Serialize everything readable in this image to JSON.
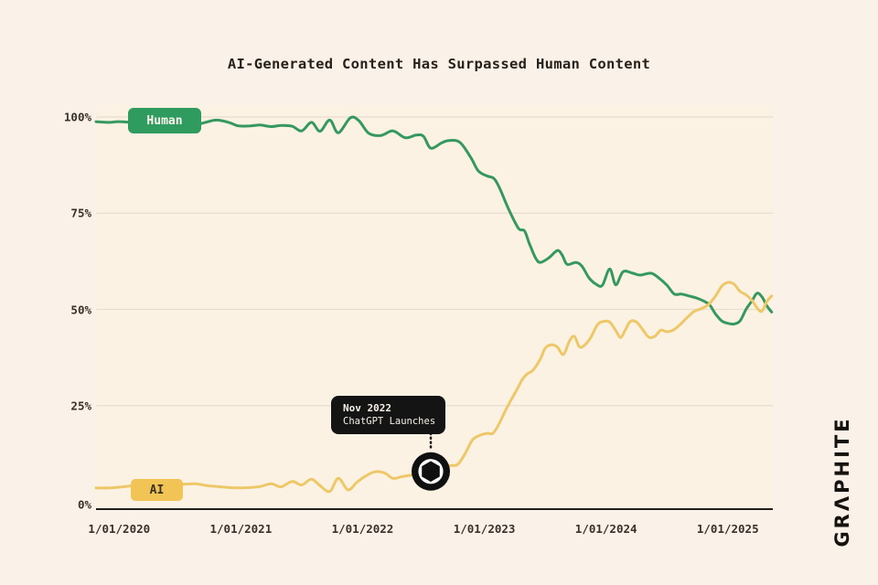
{
  "title": "AI-Generated Content Has Surpassed Human Content",
  "brand": {
    "name": "GRAPHITE",
    "display": "GRΛPHITE"
  },
  "series_labels": {
    "human": "Human",
    "ai": "AI"
  },
  "annotation": {
    "title": "Nov 2022",
    "subtitle": "ChatGPT Launches",
    "icon": "openai-logo"
  },
  "colors": {
    "background": "#faf1e8",
    "human_line": "#35995f",
    "human_badge": "#2f9b5e",
    "ai_line": "#eec868",
    "ai_badge": "#f2c355",
    "grid": "#e7ddd1",
    "axis": "#211f1c",
    "tooltip_bg": "#141414",
    "marker_bg": "#101010"
  },
  "chart_data": {
    "type": "line",
    "title": "AI-Generated Content Has Surpassed Human Content",
    "xlabel": "",
    "ylabel": "",
    "grid": "horizontal",
    "legend_position": "on-line-badges",
    "ylim": [
      0,
      100
    ],
    "xlim": [
      2019.81,
      2025.37
    ],
    "y_axis": {
      "ticks": [
        {
          "label": "0%",
          "value": 0
        },
        {
          "label": "25%",
          "value": 25
        },
        {
          "label": "50%",
          "value": 50
        },
        {
          "label": "75%",
          "value": 75
        },
        {
          "label": "100%",
          "value": 100
        }
      ]
    },
    "x_axis": {
      "ticks": [
        {
          "label": "1/01/2020",
          "year": 2020
        },
        {
          "label": "1/01/2021",
          "year": 2021
        },
        {
          "label": "1/01/2022",
          "year": 2022
        },
        {
          "label": "1/01/2023",
          "year": 2023
        },
        {
          "label": "1/01/2024",
          "year": 2024
        },
        {
          "label": "1/01/2025",
          "year": 2025
        }
      ]
    },
    "annotation_marker": {
      "year": 2022.56,
      "value": 7.9,
      "label": "Nov 2022 ChatGPT Launches"
    },
    "series": [
      {
        "name": "Human",
        "color": "#35995f",
        "points": [
          [
            2019.81,
            98.8
          ],
          [
            2019.92,
            98.6
          ],
          [
            2020.0,
            98.8
          ],
          [
            2020.15,
            98.5
          ],
          [
            2020.3,
            98.6
          ],
          [
            2020.45,
            98.4
          ],
          [
            2020.62,
            98.0
          ],
          [
            2020.72,
            98.7
          ],
          [
            2020.8,
            99.2
          ],
          [
            2020.9,
            98.6
          ],
          [
            2020.98,
            97.7
          ],
          [
            2021.08,
            97.7
          ],
          [
            2021.16,
            97.9
          ],
          [
            2021.25,
            97.5
          ],
          [
            2021.33,
            97.8
          ],
          [
            2021.42,
            97.6
          ],
          [
            2021.5,
            96.4
          ],
          [
            2021.58,
            98.6
          ],
          [
            2021.65,
            96.3
          ],
          [
            2021.73,
            99.2
          ],
          [
            2021.8,
            95.9
          ],
          [
            2021.9,
            99.8
          ],
          [
            2021.97,
            99.0
          ],
          [
            2022.05,
            95.8
          ],
          [
            2022.15,
            95.2
          ],
          [
            2022.25,
            96.4
          ],
          [
            2022.35,
            94.6
          ],
          [
            2022.44,
            95.3
          ],
          [
            2022.5,
            95.0
          ],
          [
            2022.56,
            91.9
          ],
          [
            2022.65,
            93.3
          ],
          [
            2022.71,
            93.9
          ],
          [
            2022.8,
            93.4
          ],
          [
            2022.89,
            89.4
          ],
          [
            2022.95,
            86.0
          ],
          [
            2023.02,
            84.7
          ],
          [
            2023.08,
            84.0
          ],
          [
            2023.13,
            81.2
          ],
          [
            2023.2,
            76.0
          ],
          [
            2023.28,
            71.1
          ],
          [
            2023.33,
            70.4
          ],
          [
            2023.37,
            67.1
          ],
          [
            2023.42,
            63.4
          ],
          [
            2023.46,
            62.2
          ],
          [
            2023.53,
            63.4
          ],
          [
            2023.6,
            65.3
          ],
          [
            2023.64,
            64.1
          ],
          [
            2023.68,
            61.7
          ],
          [
            2023.75,
            62.2
          ],
          [
            2023.8,
            61.3
          ],
          [
            2023.86,
            58.2
          ],
          [
            2023.92,
            56.5
          ],
          [
            2023.97,
            56.3
          ],
          [
            2024.03,
            60.5
          ],
          [
            2024.08,
            56.4
          ],
          [
            2024.14,
            59.8
          ],
          [
            2024.22,
            59.4
          ],
          [
            2024.28,
            58.9
          ],
          [
            2024.37,
            59.4
          ],
          [
            2024.44,
            58.0
          ],
          [
            2024.5,
            56.3
          ],
          [
            2024.56,
            54.0
          ],
          [
            2024.62,
            54.0
          ],
          [
            2024.68,
            53.5
          ],
          [
            2024.74,
            53.0
          ],
          [
            2024.8,
            52.2
          ],
          [
            2024.85,
            51.2
          ],
          [
            2024.9,
            48.8
          ],
          [
            2024.95,
            47.0
          ],
          [
            2025.0,
            46.4
          ],
          [
            2025.05,
            46.2
          ],
          [
            2025.1,
            47.0
          ],
          [
            2025.15,
            50.0
          ],
          [
            2025.2,
            52.3
          ],
          [
            2025.24,
            54.2
          ],
          [
            2025.28,
            53.3
          ],
          [
            2025.32,
            51.0
          ],
          [
            2025.36,
            49.3
          ]
        ]
      },
      {
        "name": "AI",
        "color": "#eec868",
        "points": [
          [
            2019.81,
            3.6
          ],
          [
            2019.92,
            3.6
          ],
          [
            2020.0,
            3.8
          ],
          [
            2020.15,
            4.2
          ],
          [
            2020.3,
            4.1
          ],
          [
            2020.45,
            4.4
          ],
          [
            2020.62,
            4.7
          ],
          [
            2020.72,
            4.2
          ],
          [
            2020.8,
            4.0
          ],
          [
            2020.9,
            3.7
          ],
          [
            2020.98,
            3.6
          ],
          [
            2021.08,
            3.7
          ],
          [
            2021.16,
            4.0
          ],
          [
            2021.25,
            4.7
          ],
          [
            2021.33,
            3.9
          ],
          [
            2021.42,
            5.3
          ],
          [
            2021.5,
            4.4
          ],
          [
            2021.58,
            5.9
          ],
          [
            2021.65,
            4.2
          ],
          [
            2021.73,
            2.7
          ],
          [
            2021.8,
            6.1
          ],
          [
            2021.88,
            3.1
          ],
          [
            2021.95,
            5.0
          ],
          [
            2022.02,
            6.6
          ],
          [
            2022.1,
            7.8
          ],
          [
            2022.18,
            7.5
          ],
          [
            2022.25,
            6.1
          ],
          [
            2022.33,
            6.6
          ],
          [
            2022.42,
            7.0
          ],
          [
            2022.5,
            7.3
          ],
          [
            2022.56,
            7.9
          ],
          [
            2022.65,
            8.6
          ],
          [
            2022.72,
            9.4
          ],
          [
            2022.78,
            9.7
          ],
          [
            2022.84,
            12.4
          ],
          [
            2022.9,
            16.0
          ],
          [
            2022.95,
            17.1
          ],
          [
            2023.02,
            17.8
          ],
          [
            2023.07,
            17.8
          ],
          [
            2023.12,
            20.2
          ],
          [
            2023.17,
            23.5
          ],
          [
            2023.22,
            26.5
          ],
          [
            2023.27,
            29.3
          ],
          [
            2023.31,
            31.7
          ],
          [
            2023.35,
            33.2
          ],
          [
            2023.4,
            34.2
          ],
          [
            2023.46,
            37.1
          ],
          [
            2023.5,
            39.9
          ],
          [
            2023.55,
            40.8
          ],
          [
            2023.6,
            40.2
          ],
          [
            2023.65,
            38.3
          ],
          [
            2023.7,
            41.8
          ],
          [
            2023.74,
            43.0
          ],
          [
            2023.78,
            40.3
          ],
          [
            2023.82,
            40.6
          ],
          [
            2023.87,
            42.5
          ],
          [
            2023.93,
            46.0
          ],
          [
            2023.98,
            46.9
          ],
          [
            2024.03,
            46.7
          ],
          [
            2024.08,
            44.5
          ],
          [
            2024.12,
            42.7
          ],
          [
            2024.16,
            44.8
          ],
          [
            2024.2,
            46.9
          ],
          [
            2024.25,
            46.7
          ],
          [
            2024.3,
            44.8
          ],
          [
            2024.35,
            42.8
          ],
          [
            2024.4,
            43.0
          ],
          [
            2024.45,
            44.6
          ],
          [
            2024.5,
            44.2
          ],
          [
            2024.55,
            44.6
          ],
          [
            2024.6,
            45.8
          ],
          [
            2024.66,
            47.7
          ],
          [
            2024.72,
            49.4
          ],
          [
            2024.78,
            50.2
          ],
          [
            2024.84,
            51.2
          ],
          [
            2024.9,
            53.5
          ],
          [
            2024.95,
            56.0
          ],
          [
            2025.0,
            57.0
          ],
          [
            2025.05,
            56.6
          ],
          [
            2025.1,
            54.7
          ],
          [
            2025.15,
            53.8
          ],
          [
            2025.2,
            52.3
          ],
          [
            2025.24,
            50.4
          ],
          [
            2025.28,
            49.5
          ],
          [
            2025.32,
            52.0
          ],
          [
            2025.36,
            53.5
          ]
        ]
      }
    ]
  }
}
